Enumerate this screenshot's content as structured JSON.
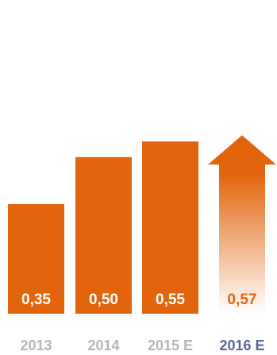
{
  "chart_data": {
    "type": "bar",
    "categories": [
      "2013",
      "2014",
      "2015 E",
      "2016 E"
    ],
    "values": [
      0.35,
      0.5,
      0.55,
      0.57
    ],
    "value_labels": [
      "0,35",
      "0,50",
      "0,55",
      "0,57"
    ],
    "last_bar_style": "upward arrow with fading gradient",
    "title": "",
    "xlabel": "",
    "ylabel": "",
    "grid": false,
    "colors": {
      "bar": "#E2650D",
      "value_label_inside": "#FFFFFF",
      "value_label_projected": "#E2650D",
      "tick_label": "#B5B5B5",
      "tick_label_highlight": "#56698F"
    }
  }
}
